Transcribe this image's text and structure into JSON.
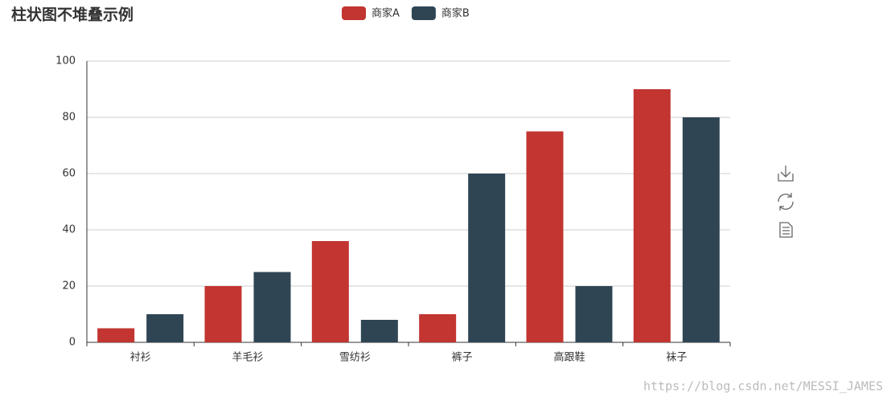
{
  "chart_data": {
    "type": "bar",
    "title": "柱状图不堆叠示例",
    "categories": [
      "衬衫",
      "羊毛衫",
      "雪纺衫",
      "裤子",
      "高跟鞋",
      "袜子"
    ],
    "series": [
      {
        "name": "商家A",
        "color": "#c23531",
        "values": [
          5,
          20,
          36,
          10,
          75,
          90
        ]
      },
      {
        "name": "商家B",
        "color": "#2f4554",
        "values": [
          10,
          25,
          8,
          60,
          20,
          80
        ]
      }
    ],
    "ylim": [
      0,
      100
    ],
    "yticks": [
      0,
      20,
      40,
      60,
      80,
      100
    ],
    "grid": true,
    "legend": "top",
    "watermark": "https://blog.csdn.net/MESSI_JAMES"
  }
}
